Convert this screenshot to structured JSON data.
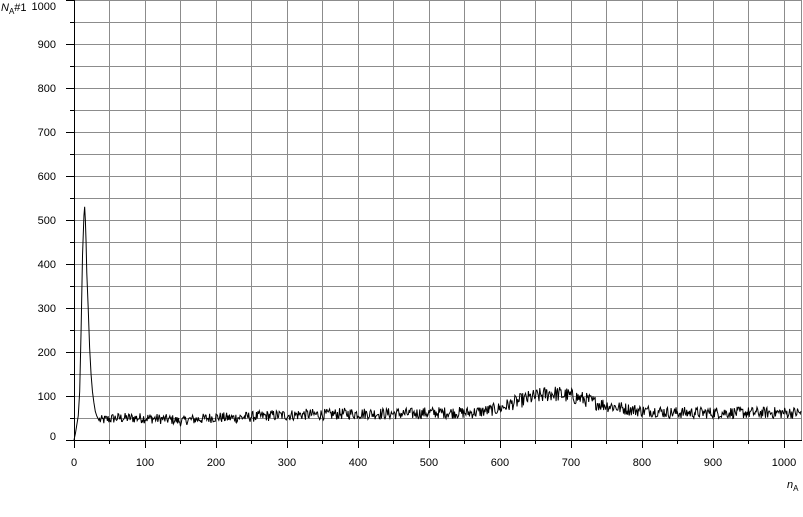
{
  "chart_data": {
    "type": "line",
    "title": "",
    "ylabel": {
      "var": "N",
      "sub": "A",
      "suffix": "#1"
    },
    "xlabel": {
      "var": "n",
      "sub": "A"
    },
    "xlim": [
      0,
      1024
    ],
    "ylim": [
      0,
      1000
    ],
    "x_ticks": [
      0,
      100,
      200,
      300,
      400,
      500,
      600,
      700,
      800,
      900,
      1000
    ],
    "y_ticks": [
      0,
      100,
      200,
      300,
      400,
      500,
      600,
      700,
      800,
      900,
      1000
    ],
    "grid": true,
    "line_color": "#000000",
    "grid_color": "#8c8c8c",
    "series": [
      {
        "x": [
          0,
          2,
          4,
          6,
          8,
          10,
          12,
          14,
          15,
          16,
          17,
          18,
          20,
          22,
          24,
          26,
          28,
          30,
          32,
          35,
          40,
          50,
          60,
          80,
          100,
          120,
          140,
          150,
          160,
          180,
          200,
          220,
          240,
          260,
          280,
          300,
          320,
          340,
          360,
          380,
          400,
          420,
          440,
          460,
          480,
          500,
          520,
          540,
          560,
          580,
          600,
          620,
          640,
          660,
          670,
          680,
          700,
          720,
          740,
          760,
          780,
          800,
          820,
          840,
          860,
          880,
          900,
          920,
          940,
          960,
          980,
          1000,
          1020,
          1024
        ],
        "y": [
          0,
          15,
          35,
          55,
          110,
          250,
          420,
          510,
          530,
          500,
          450,
          380,
          300,
          210,
          150,
          110,
          85,
          65,
          55,
          45,
          45,
          48,
          50,
          50,
          50,
          48,
          46,
          42,
          46,
          48,
          52,
          50,
          52,
          54,
          56,
          56,
          58,
          58,
          58,
          60,
          60,
          60,
          60,
          60,
          60,
          62,
          62,
          62,
          62,
          66,
          72,
          85,
          95,
          102,
          106,
          105,
          100,
          92,
          82,
          76,
          70,
          66,
          66,
          62,
          62,
          62,
          62,
          62,
          62,
          62,
          62,
          62,
          62,
          62
        ]
      }
    ]
  }
}
